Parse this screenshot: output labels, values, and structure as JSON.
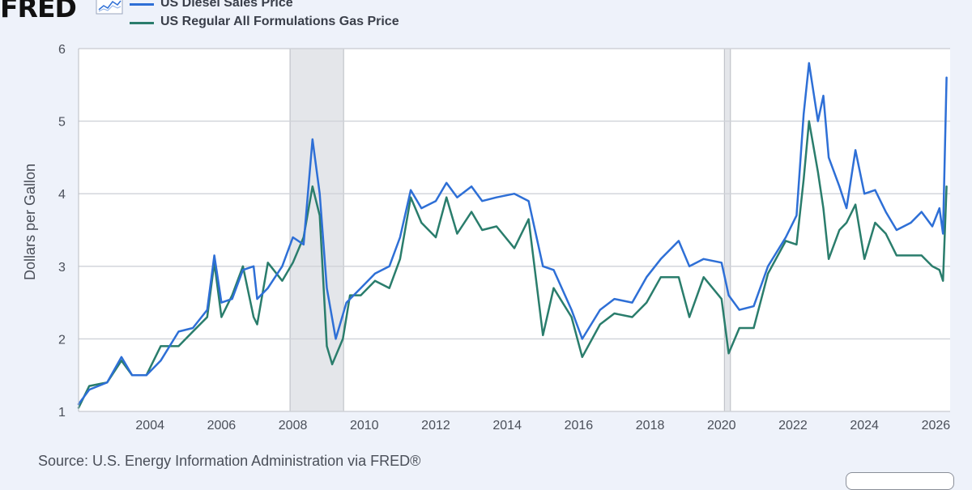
{
  "brand": {
    "name": "FRED",
    "icon": "line-graph-icon"
  },
  "colors": {
    "background": "#eef2fa",
    "plot_background": "#ffffff",
    "recession_shade": "#e4e6ea",
    "grid": "#cfd2d8",
    "diesel": "#2e6fd6",
    "gas": "#2a7d6c"
  },
  "source_text": "Source: U.S. Energy Information Administration via FRED®",
  "chart_data": {
    "type": "line",
    "title": "",
    "xlabel": "",
    "ylabel": "Dollars per Gallon",
    "xlim": [
      2002.0,
      2026.4
    ],
    "ylim": [
      1,
      6
    ],
    "yticks": [
      1,
      2,
      3,
      4,
      5,
      6
    ],
    "xticks": [
      2004,
      2006,
      2008,
      2010,
      2012,
      2014,
      2016,
      2018,
      2020,
      2022,
      2024,
      2026
    ],
    "grid": true,
    "legend_position": "top-left",
    "recessions": [
      [
        2007.92,
        2009.42
      ],
      [
        2020.08,
        2020.25
      ]
    ],
    "series": [
      {
        "name": "US Diesel Sales Price",
        "color": "#2e6fd6",
        "points": [
          [
            2002.0,
            1.1
          ],
          [
            2002.3,
            1.3
          ],
          [
            2002.8,
            1.4
          ],
          [
            2003.2,
            1.75
          ],
          [
            2003.5,
            1.5
          ],
          [
            2003.9,
            1.5
          ],
          [
            2004.3,
            1.7
          ],
          [
            2004.8,
            2.1
          ],
          [
            2005.2,
            2.15
          ],
          [
            2005.6,
            2.4
          ],
          [
            2005.8,
            3.15
          ],
          [
            2006.0,
            2.5
          ],
          [
            2006.3,
            2.55
          ],
          [
            2006.6,
            2.95
          ],
          [
            2006.9,
            3.0
          ],
          [
            2007.0,
            2.55
          ],
          [
            2007.3,
            2.7
          ],
          [
            2007.7,
            3.0
          ],
          [
            2008.0,
            3.4
          ],
          [
            2008.3,
            3.3
          ],
          [
            2008.55,
            4.75
          ],
          [
            2008.75,
            4.0
          ],
          [
            2008.95,
            2.7
          ],
          [
            2009.2,
            2.0
          ],
          [
            2009.5,
            2.5
          ],
          [
            2009.9,
            2.7
          ],
          [
            2010.3,
            2.9
          ],
          [
            2010.7,
            3.0
          ],
          [
            2011.0,
            3.4
          ],
          [
            2011.3,
            4.05
          ],
          [
            2011.6,
            3.8
          ],
          [
            2012.0,
            3.9
          ],
          [
            2012.3,
            4.15
          ],
          [
            2012.6,
            3.95
          ],
          [
            2013.0,
            4.1
          ],
          [
            2013.3,
            3.9
          ],
          [
            2013.7,
            3.95
          ],
          [
            2014.2,
            4.0
          ],
          [
            2014.6,
            3.9
          ],
          [
            2015.0,
            3.0
          ],
          [
            2015.3,
            2.95
          ],
          [
            2015.8,
            2.4
          ],
          [
            2016.1,
            2.0
          ],
          [
            2016.6,
            2.4
          ],
          [
            2017.0,
            2.55
          ],
          [
            2017.5,
            2.5
          ],
          [
            2017.9,
            2.85
          ],
          [
            2018.3,
            3.1
          ],
          [
            2018.8,
            3.35
          ],
          [
            2019.1,
            3.0
          ],
          [
            2019.5,
            3.1
          ],
          [
            2020.0,
            3.05
          ],
          [
            2020.2,
            2.6
          ],
          [
            2020.5,
            2.4
          ],
          [
            2020.9,
            2.45
          ],
          [
            2021.3,
            3.0
          ],
          [
            2021.8,
            3.4
          ],
          [
            2022.1,
            3.7
          ],
          [
            2022.3,
            5.1
          ],
          [
            2022.45,
            5.8
          ],
          [
            2022.7,
            5.0
          ],
          [
            2022.85,
            5.35
          ],
          [
            2023.0,
            4.5
          ],
          [
            2023.3,
            4.1
          ],
          [
            2023.5,
            3.8
          ],
          [
            2023.75,
            4.6
          ],
          [
            2024.0,
            4.0
          ],
          [
            2024.3,
            4.05
          ],
          [
            2024.6,
            3.75
          ],
          [
            2024.9,
            3.5
          ],
          [
            2025.3,
            3.6
          ],
          [
            2025.6,
            3.75
          ],
          [
            2025.9,
            3.55
          ],
          [
            2026.1,
            3.8
          ],
          [
            2026.2,
            3.45
          ],
          [
            2026.3,
            5.6
          ]
        ]
      },
      {
        "name": "US Regular All Formulations Gas Price",
        "color": "#2a7d6c",
        "points": [
          [
            2002.0,
            1.05
          ],
          [
            2002.3,
            1.35
          ],
          [
            2002.8,
            1.4
          ],
          [
            2003.2,
            1.7
          ],
          [
            2003.5,
            1.5
          ],
          [
            2003.9,
            1.5
          ],
          [
            2004.3,
            1.9
          ],
          [
            2004.8,
            1.9
          ],
          [
            2005.2,
            2.1
          ],
          [
            2005.6,
            2.3
          ],
          [
            2005.8,
            3.05
          ],
          [
            2006.0,
            2.3
          ],
          [
            2006.3,
            2.6
          ],
          [
            2006.6,
            3.0
          ],
          [
            2006.9,
            2.3
          ],
          [
            2007.0,
            2.2
          ],
          [
            2007.3,
            3.05
          ],
          [
            2007.7,
            2.8
          ],
          [
            2008.0,
            3.05
          ],
          [
            2008.3,
            3.4
          ],
          [
            2008.55,
            4.1
          ],
          [
            2008.75,
            3.7
          ],
          [
            2008.95,
            1.9
          ],
          [
            2009.1,
            1.65
          ],
          [
            2009.4,
            2.0
          ],
          [
            2009.6,
            2.6
          ],
          [
            2009.9,
            2.6
          ],
          [
            2010.3,
            2.8
          ],
          [
            2010.7,
            2.7
          ],
          [
            2011.0,
            3.1
          ],
          [
            2011.3,
            3.95
          ],
          [
            2011.6,
            3.6
          ],
          [
            2012.0,
            3.4
          ],
          [
            2012.3,
            3.95
          ],
          [
            2012.6,
            3.45
          ],
          [
            2013.0,
            3.75
          ],
          [
            2013.3,
            3.5
          ],
          [
            2013.7,
            3.55
          ],
          [
            2014.2,
            3.25
          ],
          [
            2014.6,
            3.65
          ],
          [
            2015.0,
            2.05
          ],
          [
            2015.3,
            2.7
          ],
          [
            2015.8,
            2.3
          ],
          [
            2016.1,
            1.75
          ],
          [
            2016.6,
            2.2
          ],
          [
            2017.0,
            2.35
          ],
          [
            2017.5,
            2.3
          ],
          [
            2017.9,
            2.5
          ],
          [
            2018.3,
            2.85
          ],
          [
            2018.8,
            2.85
          ],
          [
            2019.1,
            2.3
          ],
          [
            2019.5,
            2.85
          ],
          [
            2020.0,
            2.55
          ],
          [
            2020.2,
            1.8
          ],
          [
            2020.5,
            2.15
          ],
          [
            2020.9,
            2.15
          ],
          [
            2021.3,
            2.9
          ],
          [
            2021.8,
            3.35
          ],
          [
            2022.1,
            3.3
          ],
          [
            2022.3,
            4.2
          ],
          [
            2022.45,
            5.0
          ],
          [
            2022.7,
            4.3
          ],
          [
            2022.85,
            3.8
          ],
          [
            2023.0,
            3.1
          ],
          [
            2023.3,
            3.5
          ],
          [
            2023.5,
            3.6
          ],
          [
            2023.75,
            3.85
          ],
          [
            2024.0,
            3.1
          ],
          [
            2024.3,
            3.6
          ],
          [
            2024.6,
            3.45
          ],
          [
            2024.9,
            3.15
          ],
          [
            2025.3,
            3.15
          ],
          [
            2025.6,
            3.15
          ],
          [
            2025.9,
            3.0
          ],
          [
            2026.1,
            2.95
          ],
          [
            2026.2,
            2.8
          ],
          [
            2026.3,
            4.1
          ]
        ]
      }
    ]
  }
}
